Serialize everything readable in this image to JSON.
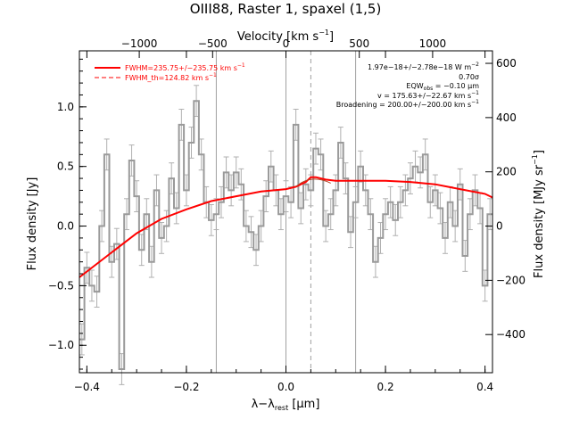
{
  "chart_data": {
    "type": "line",
    "title": "OIII88, Raster 1, spaxel (1,5)",
    "xlabel_main": "λ−λ",
    "xlabel_sub": "rest",
    "xlabel_unit": " [μm]",
    "ylabel_left": "Flux density [Jy]",
    "ylabel_right": "Flux density [MJy sr",
    "ylabel_right_sup": "−1",
    "ylabel_right_end": "]",
    "top_axis_label": "Velocity [km s",
    "top_axis_label_sup": "−1",
    "top_axis_label_end": "]",
    "xlim": [
      -0.415,
      0.415
    ],
    "ylim": [
      -1.23,
      1.47
    ],
    "x_ticks": [
      -0.4,
      -0.2,
      0.0,
      0.2,
      0.4
    ],
    "x_tick_labels": [
      "−0.4",
      "−0.2",
      "0.0",
      "0.2",
      "0.4"
    ],
    "y_ticks": [
      -1.0,
      -0.5,
      0.0,
      0.5,
      1.0
    ],
    "y_tick_labels": [
      "−1.0",
      "−0.5",
      "0.0",
      "0.5",
      "1.0"
    ],
    "top_ticks": [
      -1000,
      -500,
      0,
      500,
      1000
    ],
    "top_tick_labels": [
      "−1000",
      "−500",
      "0",
      "500",
      "1000"
    ],
    "right_ticks": [
      -400,
      -200,
      0,
      200,
      400,
      600
    ],
    "right_tick_labels": [
      "−400",
      "−200",
      "0",
      "200",
      "400",
      "600"
    ],
    "vertical_lines": [
      -0.14,
      0.0,
      0.14
    ],
    "dashed_line": 0.05,
    "legend": {
      "fwhm": "FWHM=235.75+/−235.75 km s",
      "fwhm_th": "FWHM_th=124.82 km s",
      "unit_sup": "−1"
    },
    "annotations": {
      "flux": "1.97e−18+/−2.78e−18 W m",
      "flux_sup": "−2",
      "sigma": "0.70σ",
      "eqw": "EQW",
      "eqw_sub": "obs",
      "eqw_val": " = −0.10 μm",
      "v": "v = 175.63+/−22.67 km s",
      "v_sup": "−1",
      "broadening": "Broadening = 200.00+/−200.00 km s",
      "broadening_sup": "−1"
    },
    "colors": {
      "data": "#9a9a9a",
      "fit": "#ff0000",
      "vlines": "#a0a0a0"
    },
    "data_x": [
      -0.41,
      -0.4,
      -0.39,
      -0.38,
      -0.37,
      -0.36,
      -0.35,
      -0.34,
      -0.33,
      -0.32,
      -0.31,
      -0.3,
      -0.29,
      -0.28,
      -0.27,
      -0.26,
      -0.25,
      -0.24,
      -0.23,
      -0.22,
      -0.21,
      -0.2,
      -0.19,
      -0.18,
      -0.17,
      -0.16,
      -0.15,
      -0.14,
      -0.13,
      -0.12,
      -0.11,
      -0.1,
      -0.09,
      -0.08,
      -0.07,
      -0.06,
      -0.05,
      -0.04,
      -0.03,
      -0.02,
      -0.01,
      0.0,
      0.01,
      0.02,
      0.03,
      0.04,
      0.05,
      0.06,
      0.07,
      0.08,
      0.09,
      0.1,
      0.11,
      0.12,
      0.13,
      0.14,
      0.15,
      0.16,
      0.17,
      0.18,
      0.19,
      0.2,
      0.21,
      0.22,
      0.23,
      0.24,
      0.25,
      0.26,
      0.27,
      0.28,
      0.29,
      0.3,
      0.31,
      0.32,
      0.33,
      0.34,
      0.35,
      0.36,
      0.37,
      0.38,
      0.39,
      0.4,
      0.41
    ],
    "data_y": [
      -0.95,
      -0.35,
      -0.5,
      -0.55,
      0.0,
      0.6,
      -0.3,
      -0.15,
      -1.2,
      0.1,
      0.55,
      0.25,
      -0.2,
      0.1,
      -0.3,
      0.3,
      -0.1,
      0.0,
      0.4,
      0.15,
      0.85,
      0.3,
      0.7,
      1.05,
      0.6,
      0.2,
      0.05,
      0.1,
      0.2,
      0.45,
      0.3,
      0.45,
      0.35,
      0.0,
      -0.05,
      -0.2,
      0.0,
      0.25,
      0.5,
      0.3,
      0.1,
      0.25,
      0.2,
      0.85,
      0.15,
      0.35,
      0.3,
      0.65,
      0.6,
      0.0,
      0.1,
      0.3,
      0.7,
      0.4,
      -0.05,
      0.2,
      0.5,
      0.3,
      0.1,
      -0.3,
      -0.1,
      0.1,
      0.2,
      0.05,
      0.2,
      0.3,
      0.4,
      0.5,
      0.45,
      0.6,
      0.2,
      0.3,
      0.15,
      -0.1,
      0.2,
      0.0,
      0.35,
      -0.25,
      0.1,
      0.3,
      0.15,
      -0.5,
      0.1
    ],
    "fit_x": [
      -0.415,
      -0.35,
      -0.3,
      -0.25,
      -0.2,
      -0.15,
      -0.1,
      -0.05,
      0.0,
      0.02,
      0.04,
      0.05,
      0.06,
      0.08,
      0.1,
      0.15,
      0.2,
      0.25,
      0.3,
      0.35,
      0.4,
      0.415
    ],
    "fit_y": [
      -0.43,
      -0.22,
      -0.06,
      0.06,
      0.14,
      0.21,
      0.25,
      0.29,
      0.31,
      0.33,
      0.37,
      0.41,
      0.41,
      0.39,
      0.38,
      0.38,
      0.38,
      0.37,
      0.35,
      0.31,
      0.27,
      0.24
    ]
  }
}
